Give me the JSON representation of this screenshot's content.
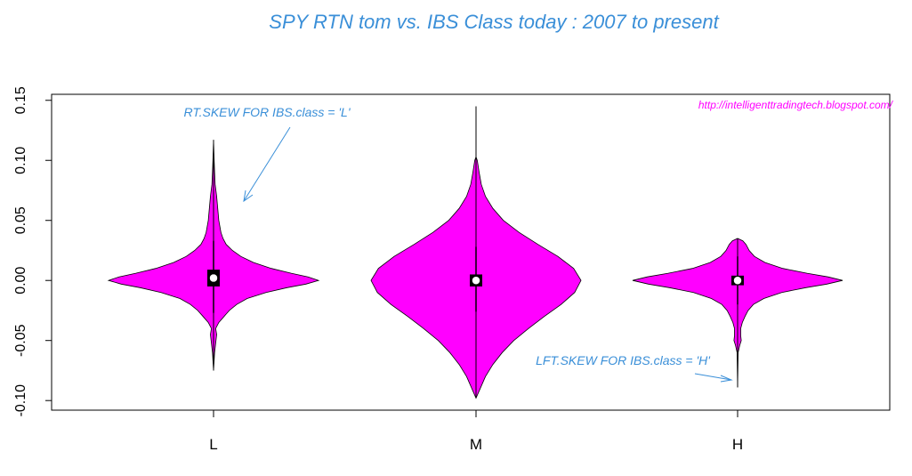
{
  "chart_data": {
    "type": "violin",
    "title": "SPY RTN tom vs. IBS Class today : 2007 to present",
    "categories": [
      "L",
      "M",
      "H"
    ],
    "yticks": [
      -0.1,
      -0.05,
      0.0,
      0.05,
      0.1,
      0.15
    ],
    "ytick_labels": [
      "-0.10",
      "-0.05",
      "0.00",
      "0.05",
      "0.10",
      "0.15"
    ],
    "ylim": [
      -0.108,
      0.155
    ],
    "violins": [
      {
        "category": "L",
        "min": -0.075,
        "max": 0.117,
        "q1": -0.005,
        "q3": 0.009,
        "median": 0.002,
        "whisker_low": -0.027,
        "whisker_high": 0.033,
        "profile": [
          [
            -0.075,
            0.0
          ],
          [
            -0.06,
            0.01
          ],
          [
            -0.045,
            0.03
          ],
          [
            -0.04,
            0.02
          ],
          [
            -0.035,
            0.05
          ],
          [
            -0.03,
            0.1
          ],
          [
            -0.025,
            0.15
          ],
          [
            -0.02,
            0.22
          ],
          [
            -0.015,
            0.32
          ],
          [
            -0.01,
            0.5
          ],
          [
            -0.006,
            0.7
          ],
          [
            -0.003,
            0.88
          ],
          [
            0.0,
            1.0
          ],
          [
            0.003,
            0.9
          ],
          [
            0.006,
            0.74
          ],
          [
            0.01,
            0.55
          ],
          [
            0.015,
            0.38
          ],
          [
            0.02,
            0.26
          ],
          [
            0.025,
            0.18
          ],
          [
            0.03,
            0.12
          ],
          [
            0.035,
            0.09
          ],
          [
            0.04,
            0.07
          ],
          [
            0.05,
            0.05
          ],
          [
            0.06,
            0.04
          ],
          [
            0.07,
            0.03
          ],
          [
            0.08,
            0.015
          ],
          [
            0.09,
            0.01
          ],
          [
            0.1,
            0.006
          ],
          [
            0.117,
            0.0
          ]
        ]
      },
      {
        "category": "M",
        "min": -0.098,
        "max": 0.145,
        "q1": -0.005,
        "q3": 0.005,
        "median": 0.0,
        "whisker_low": -0.026,
        "whisker_high": 0.028,
        "profile": [
          [
            -0.098,
            0.0
          ],
          [
            -0.09,
            0.04
          ],
          [
            -0.08,
            0.09
          ],
          [
            -0.07,
            0.16
          ],
          [
            -0.06,
            0.25
          ],
          [
            -0.05,
            0.36
          ],
          [
            -0.04,
            0.5
          ],
          [
            -0.03,
            0.65
          ],
          [
            -0.02,
            0.81
          ],
          [
            -0.01,
            0.94
          ],
          [
            0.0,
            1.0
          ],
          [
            0.01,
            0.93
          ],
          [
            0.02,
            0.78
          ],
          [
            0.03,
            0.59
          ],
          [
            0.04,
            0.41
          ],
          [
            0.05,
            0.26
          ],
          [
            0.06,
            0.16
          ],
          [
            0.07,
            0.09
          ],
          [
            0.08,
            0.05
          ],
          [
            0.09,
            0.03
          ],
          [
            0.1,
            0.012
          ],
          [
            0.103,
            0.0
          ],
          [
            0.145,
            0.0
          ]
        ]
      },
      {
        "category": "H",
        "min": -0.089,
        "max": 0.035,
        "q1": -0.004,
        "q3": 0.004,
        "median": 0.0,
        "whisker_low": -0.02,
        "whisker_high": 0.02,
        "profile": [
          [
            -0.089,
            0.0
          ],
          [
            -0.06,
            0.005
          ],
          [
            -0.054,
            0.02
          ],
          [
            -0.05,
            0.035
          ],
          [
            -0.046,
            0.03
          ],
          [
            -0.04,
            0.03
          ],
          [
            -0.035,
            0.045
          ],
          [
            -0.03,
            0.07
          ],
          [
            -0.025,
            0.1
          ],
          [
            -0.02,
            0.15
          ],
          [
            -0.015,
            0.25
          ],
          [
            -0.01,
            0.42
          ],
          [
            -0.006,
            0.65
          ],
          [
            -0.003,
            0.85
          ],
          [
            0.0,
            1.0
          ],
          [
            0.003,
            0.86
          ],
          [
            0.006,
            0.66
          ],
          [
            0.01,
            0.43
          ],
          [
            0.015,
            0.26
          ],
          [
            0.02,
            0.16
          ],
          [
            0.025,
            0.11
          ],
          [
            0.03,
            0.08
          ],
          [
            0.033,
            0.05
          ],
          [
            0.035,
            0.0
          ]
        ]
      }
    ],
    "annotations": [
      {
        "text": "RT.SKEW FOR IBS.class = 'L'"
      },
      {
        "text": "LFT.SKEW FOR IBS.class = 'H'"
      }
    ],
    "watermark": "http://intelligenttradingtech.blogspot.com/",
    "colors": {
      "violin_fill": "#ff00ff",
      "title": "#3a8fd8",
      "annotation": "#3a8fd8",
      "watermark": "#ff00ff"
    }
  }
}
